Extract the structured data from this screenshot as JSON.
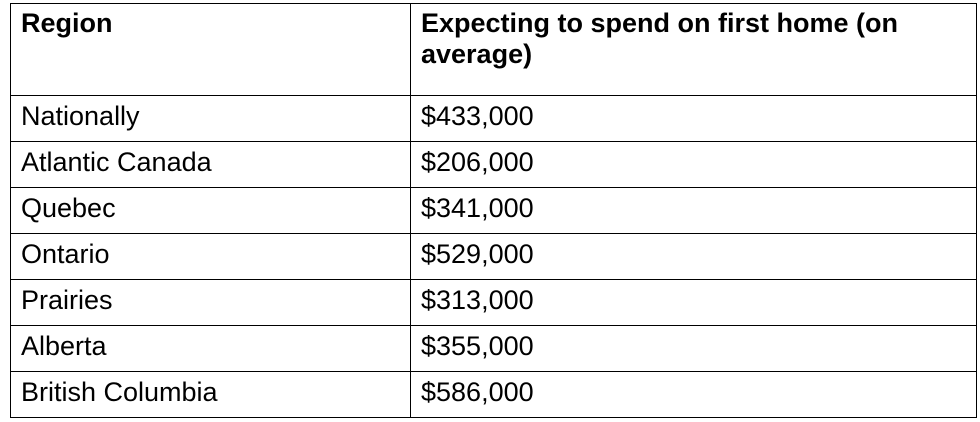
{
  "table": {
    "headers": [
      "Region",
      "Expecting to spend on first home (on average)"
    ],
    "rows": [
      {
        "region": "Nationally",
        "amount": "$433,000"
      },
      {
        "region": "Atlantic Canada",
        "amount": "$206,000"
      },
      {
        "region": "Quebec",
        "amount": "$341,000"
      },
      {
        "region": "Ontario",
        "amount": "$529,000"
      },
      {
        "region": "Prairies",
        "amount": "$313,000"
      },
      {
        "region": "Alberta",
        "amount": "$355,000"
      },
      {
        "region": "British Columbia",
        "amount": "$586,000"
      }
    ]
  }
}
